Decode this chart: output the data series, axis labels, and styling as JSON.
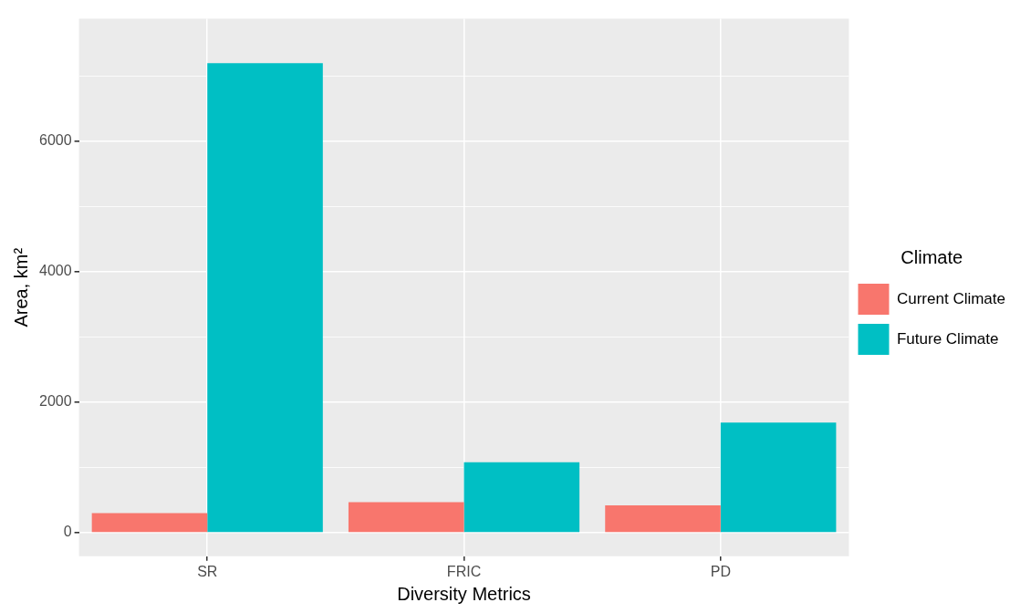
{
  "chart_data": {
    "type": "bar",
    "xlabel": "Diversity Metrics",
    "ylabel": "Area, km²",
    "legend_title": "Climate",
    "categories": [
      "SR",
      "FRIC",
      "PD"
    ],
    "series": [
      {
        "name": "Current Climate",
        "color": "#f8766d",
        "values": [
          300,
          470,
          420
        ]
      },
      {
        "name": "Future Climate",
        "color": "#00bfc4",
        "values": [
          7200,
          1080,
          1690
        ]
      }
    ],
    "ylim": [
      -360,
      7880
    ],
    "yticks": [
      0,
      {
        "value": 1000,
        "label": null
      },
      2000,
      {
        "value": 3000,
        "label": null
      },
      4000,
      {
        "value": 5000,
        "label": null
      },
      6000,
      {
        "value": 7000,
        "label": null
      }
    ],
    "grid": true,
    "legend": "right"
  }
}
